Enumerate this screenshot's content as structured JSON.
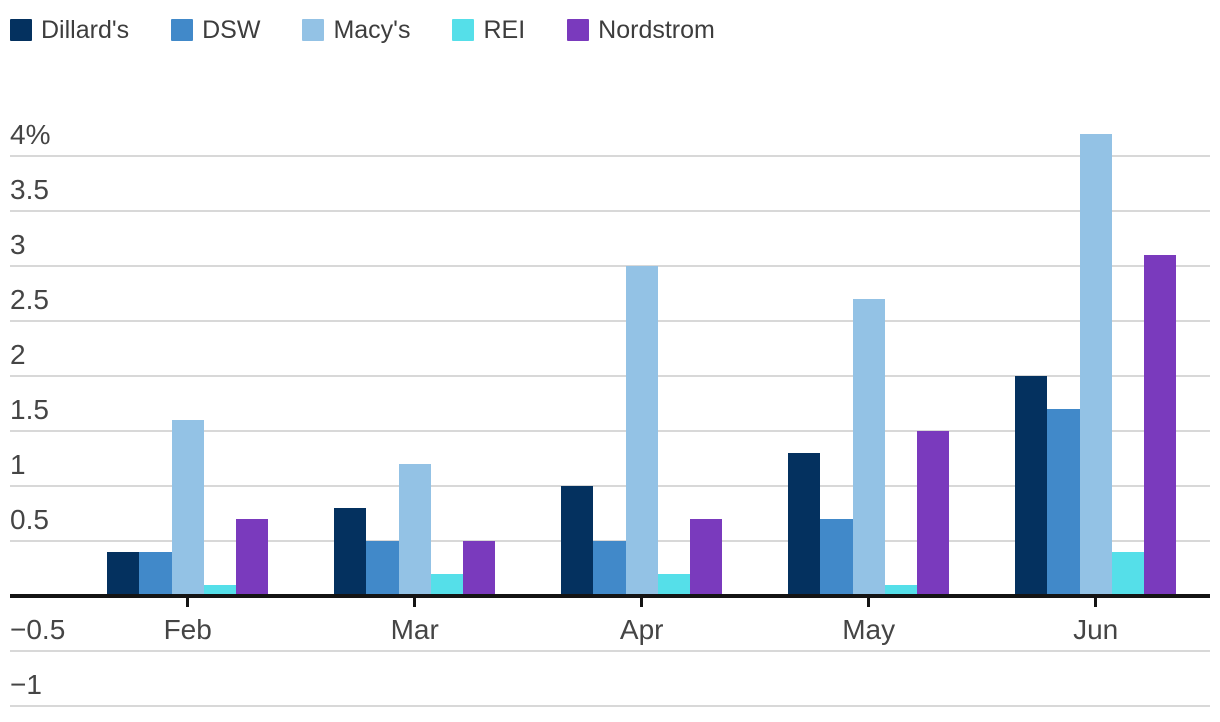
{
  "chart_data": {
    "type": "bar",
    "title": "",
    "xlabel": "",
    "ylabel": "",
    "categories": [
      "Feb",
      "Mar",
      "Apr",
      "May",
      "Jun"
    ],
    "series": [
      {
        "name": "Dillard's",
        "color": "#04315f",
        "values": [
          0.4,
          0.8,
          1.0,
          1.3,
          2.0
        ]
      },
      {
        "name": "DSW",
        "color": "#4189c9",
        "values": [
          0.4,
          0.5,
          0.5,
          0.7,
          1.7
        ]
      },
      {
        "name": "Macy's",
        "color": "#93c2e5",
        "values": [
          1.6,
          1.2,
          3.0,
          2.7,
          4.2
        ]
      },
      {
        "name": "REI",
        "color": "#55dfe9",
        "values": [
          0.1,
          0.2,
          0.2,
          0.1,
          0.4
        ]
      },
      {
        "name": "Nordstrom",
        "color": "#7a3abd",
        "values": [
          0.7,
          0.5,
          0.7,
          1.5,
          3.1
        ]
      }
    ],
    "yticks": [
      {
        "value": 4,
        "label": "4%"
      },
      {
        "value": 3.5,
        "label": "3.5"
      },
      {
        "value": 3,
        "label": "3"
      },
      {
        "value": 2.5,
        "label": "2.5"
      },
      {
        "value": 2,
        "label": "2"
      },
      {
        "value": 1.5,
        "label": "1.5"
      },
      {
        "value": 1,
        "label": "1"
      },
      {
        "value": 0.5,
        "label": "0.5"
      },
      {
        "value": -0.5,
        "label": "−0.5"
      },
      {
        "value": -1,
        "label": "−1"
      }
    ],
    "ylim": [
      -1,
      4.4
    ],
    "grid": true,
    "legend_position": "top-left",
    "colors": {
      "gridline": "#d8d8d8",
      "axis": "#141414",
      "legend_text": "#3d3d3d",
      "axis_text": "#454545",
      "background": "#ffffff"
    }
  }
}
